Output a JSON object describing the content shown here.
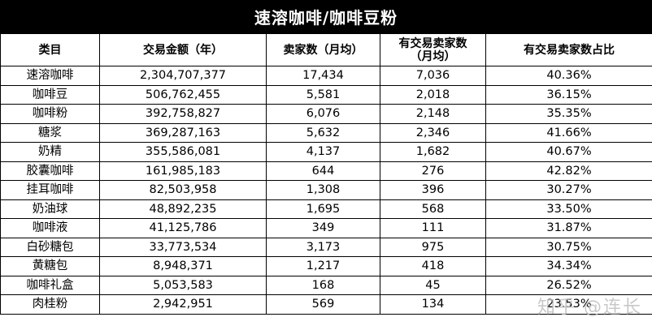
{
  "title": "速溶咖啡/咖啡豆粉",
  "columns": [
    "类目",
    "交易金额（年）",
    "卖家数（月均）",
    "有交易卖家数\n（月均）",
    "有交易卖家数占比"
  ],
  "rows": [
    [
      "速溶咖啡",
      "2,304,707,377",
      "17,434",
      "7,036",
      "40.36%"
    ],
    [
      "咖啡豆",
      "506,762,455",
      "5,581",
      "2,018",
      "36.15%"
    ],
    [
      "咖啡粉",
      "392,758,827",
      "6,076",
      "2,148",
      "35.35%"
    ],
    [
      "糖浆",
      "369,287,163",
      "5,632",
      "2,346",
      "41.66%"
    ],
    [
      "奶精",
      "355,586,081",
      "4,137",
      "1,682",
      "40.67%"
    ],
    [
      "胶囊咖啡",
      "161,985,183",
      "644",
      "276",
      "42.82%"
    ],
    [
      "挂耳咖啡",
      "82,503,958",
      "1,308",
      "396",
      "30.27%"
    ],
    [
      "奶油球",
      "48,892,235",
      "1,695",
      "568",
      "33.50%"
    ],
    [
      "咖啡液",
      "41,125,786",
      "349",
      "111",
      "31.87%"
    ],
    [
      "白砂糖包",
      "33,773,534",
      "3,173",
      "975",
      "30.75%"
    ],
    [
      "黄糖包",
      "8,948,371",
      "1,217",
      "418",
      "34.34%"
    ],
    [
      "咖啡礼盒",
      "5,053,583",
      "168",
      "45",
      "26.52%"
    ],
    [
      "肉桂粉",
      "2,942,951",
      "569",
      "134",
      "23.53%"
    ]
  ],
  "watermark": "知乎 @连长"
}
